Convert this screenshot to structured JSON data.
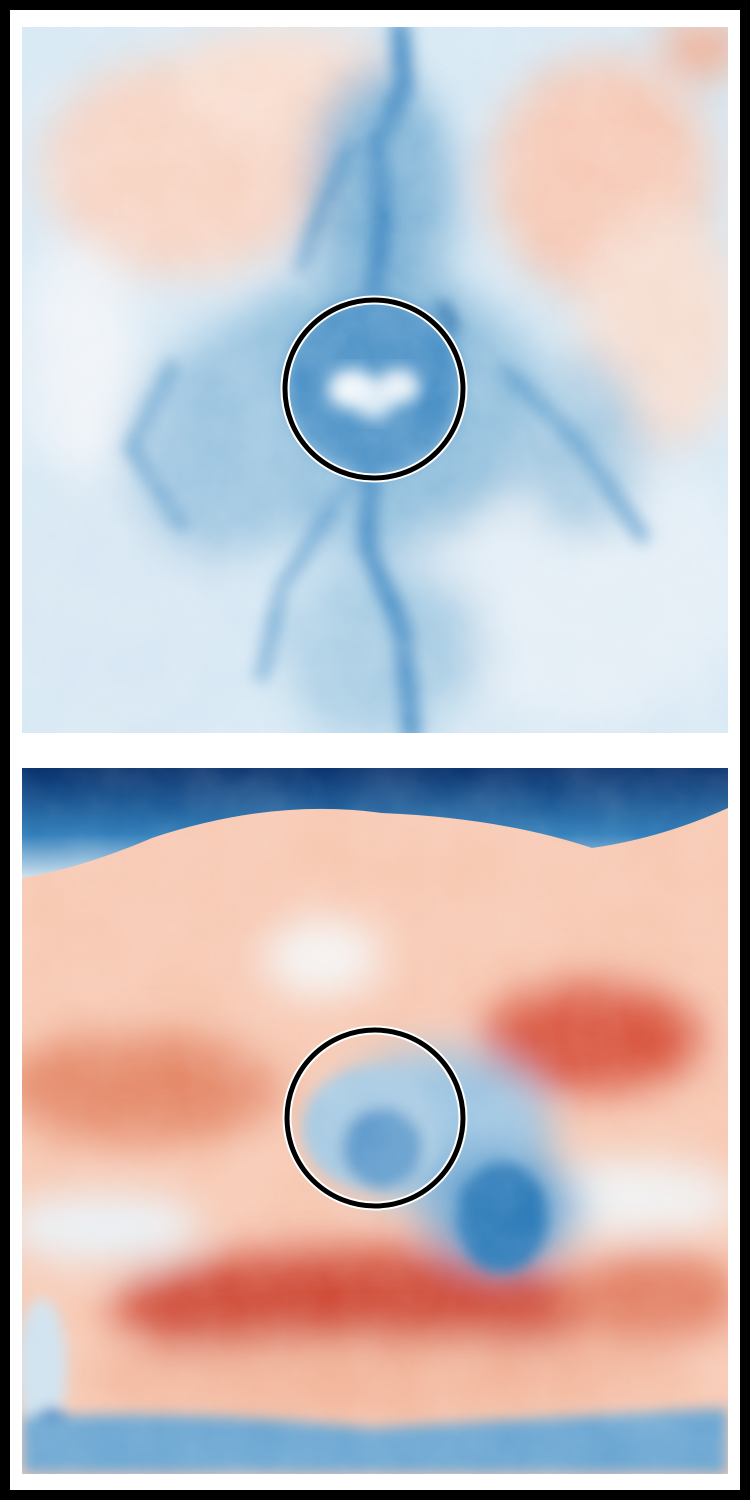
{
  "figure": {
    "panels": [
      {
        "id": "top",
        "field": "mostly-negative",
        "colormap": "RdBu_r",
        "highlight_circle": {
          "color": "#000000",
          "halo": "#ffffff"
        }
      },
      {
        "id": "bottom",
        "field": "banded-positive-with-negative-core",
        "colormap": "RdBu_r",
        "highlight_circle": {
          "color": "#000000",
          "halo": "#ffffff"
        }
      }
    ],
    "colors": {
      "frame": "#000000",
      "background": "#ffffff",
      "deep_blue": "#08306b",
      "mid_blue": "#2b7bba",
      "light_blue": "#cfe3f0",
      "neutral": "#f5f5f5",
      "light_red": "#f6c0a6",
      "mid_red": "#e07a5f",
      "deep_red": "#c23b30"
    }
  }
}
